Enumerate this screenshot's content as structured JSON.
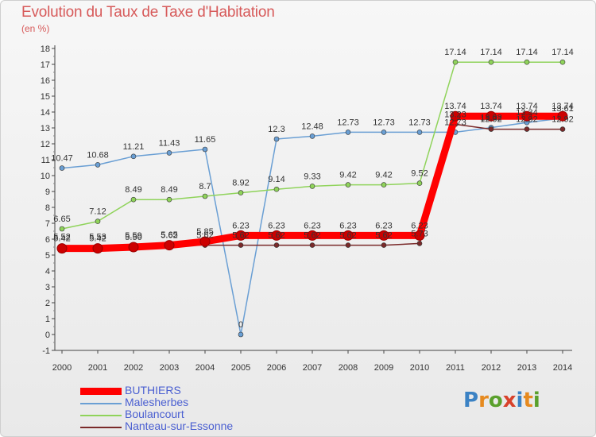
{
  "title": "Evolution du Taux de Taxe d'Habitation",
  "unit_label": "(en %)",
  "logo": {
    "text": "Proxiti",
    "letters": [
      "P",
      "r",
      "o",
      "x",
      "i",
      "t",
      "i"
    ],
    "colors": [
      "#3b82c4",
      "#e68a1f",
      "#5aa02c",
      "#d8422b",
      "#3b82c4",
      "#e68a1f",
      "#5aa02c"
    ]
  },
  "legend": [
    {
      "name": "BUTHIERS",
      "color": "#ff0000"
    },
    {
      "name": "Malesherbes",
      "color": "#6a9fd4"
    },
    {
      "name": "Boulancourt",
      "color": "#8fd35a"
    },
    {
      "name": "Nanteau-sur-Essonne",
      "color": "#7a2a2a"
    }
  ],
  "chart_data": {
    "type": "line",
    "title": "Evolution du Taux de Taxe d'Habitation",
    "ylabel": "(en %)",
    "xlabel": "",
    "x": [
      "2000",
      "2001",
      "2002",
      "2003",
      "2004",
      "2005",
      "2006",
      "2007",
      "2008",
      "2009",
      "2010",
      "2011",
      "2012",
      "2013",
      "2014"
    ],
    "y_ticks": [
      "-1",
      "0",
      "1",
      "2",
      "3",
      "4",
      "5",
      "6",
      "7",
      "8",
      "9",
      "10",
      "11",
      "12",
      "13",
      "14",
      "15",
      "16",
      "17",
      "18"
    ],
    "ylim": [
      -1,
      18
    ],
    "grid": false,
    "legend_position": "bottom-left",
    "series": [
      {
        "name": "BUTHIERS",
        "color": "#ff0000",
        "values": [
          5.42,
          5.42,
          5.5,
          5.62,
          5.85,
          6.23,
          6.23,
          6.23,
          6.23,
          6.23,
          6.23,
          13.74,
          13.74,
          13.74,
          13.74
        ],
        "labels": [
          "5.42",
          "5.42",
          "5.50",
          "5.62",
          "5.85",
          "6.23",
          "6.23",
          "6.23",
          "6.23",
          "6.23",
          "6.23",
          "13.74",
          "13.74",
          "13.74",
          "13.74"
        ]
      },
      {
        "name": "Malesherbes",
        "color": "#6a9fd4",
        "values": [
          10.47,
          10.68,
          11.21,
          11.43,
          11.65,
          0,
          12.3,
          12.48,
          12.73,
          12.73,
          12.73,
          12.73,
          13.02,
          13.34,
          13.61
        ],
        "labels": [
          "10.47",
          "10.68",
          "11.21",
          "11.43",
          "11.65",
          "0",
          "12.3",
          "12.48",
          "12.73",
          "12.73",
          "12.73",
          "12.73",
          "13.02",
          "13.34",
          "13.61"
        ]
      },
      {
        "name": "Boulancourt",
        "color": "#8fd35a",
        "values": [
          6.65,
          7.12,
          8.49,
          8.49,
          8.7,
          8.92,
          9.14,
          9.33,
          9.42,
          9.42,
          9.52,
          17.14,
          17.14,
          17.14,
          17.14
        ],
        "labels": [
          "6.65",
          "7.12",
          "8.49",
          "8.49",
          "8.7",
          "8.92",
          "9.14",
          "9.33",
          "9.42",
          "9.42",
          "9.52",
          "17.14",
          "17.14",
          "17.14",
          "17.14"
        ]
      },
      {
        "name": "Nanteau-sur-Essonne",
        "color": "#7a2a2a",
        "values": [
          5.52,
          5.53,
          5.59,
          5.65,
          5.62,
          5.62,
          5.62,
          5.62,
          5.62,
          5.62,
          5.73,
          13.23,
          12.92,
          12.92,
          12.92
        ],
        "labels": [
          "5.52",
          "5.53",
          "5.59",
          "5.65",
          "5.62",
          "5.62",
          "5.62",
          "5.62",
          "5.62",
          "5.62",
          "5.73",
          "13.23",
          "12.92",
          "12.92",
          "12.92"
        ]
      }
    ]
  }
}
